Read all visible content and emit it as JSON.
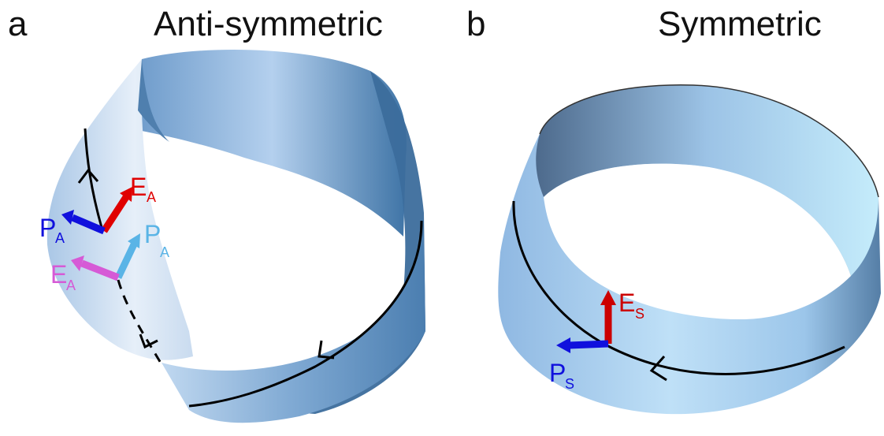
{
  "panels": [
    {
      "letter": "a",
      "title": "Anti-symmetric",
      "vectors": [
        {
          "main": "E",
          "sub": "A",
          "color": "#e00000"
        },
        {
          "main": "P",
          "sub": "A",
          "color": "#1010dd"
        },
        {
          "main": "P",
          "sub": "A",
          "color": "#5ab4e6"
        },
        {
          "main": "E",
          "sub": "A",
          "color": "#d65ad6"
        }
      ]
    },
    {
      "letter": "b",
      "title": "Symmetric",
      "vectors": [
        {
          "main": "E",
          "sub": "S",
          "color": "#cc0000"
        },
        {
          "main": "P",
          "sub": "S",
          "color": "#1010dd"
        }
      ]
    }
  ],
  "colors": {
    "band_light": "#d8e8f7",
    "band_mid": "#8fb5dc",
    "band_dark": "#2f628f",
    "path": "#000000"
  }
}
